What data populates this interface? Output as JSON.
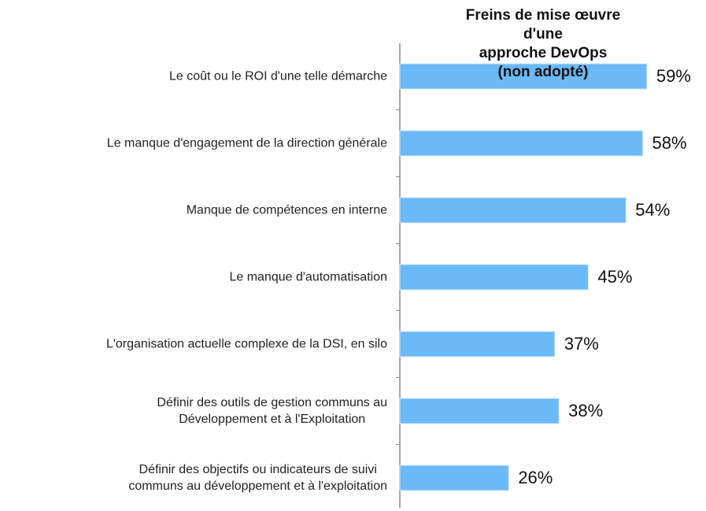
{
  "chart_data": {
    "type": "bar",
    "orientation": "horizontal",
    "title": "Freins de mise œuvre d'une\napproche DevOps  (non adopté)",
    "categories": [
      "Le coût ou le ROI d'une telle démarche",
      "Le manque d'engagement de la direction générale",
      "Manque de compétences en interne",
      "Le manque d'automatisation",
      "L'organisation actuelle complexe de la DSI, en silo",
      "Définir des outils de gestion communs au\nDéveloppement et à l'Exploitation",
      "Définir des objectifs ou indicateurs de suivi\ncommuns au développement et à l'exploitation"
    ],
    "values": [
      59,
      58,
      54,
      45,
      37,
      38,
      26
    ],
    "value_labels": [
      "59%",
      "58%",
      "54%",
      "45%",
      "37%",
      "38%",
      "26%"
    ],
    "color": "#6bb9f7"
  }
}
